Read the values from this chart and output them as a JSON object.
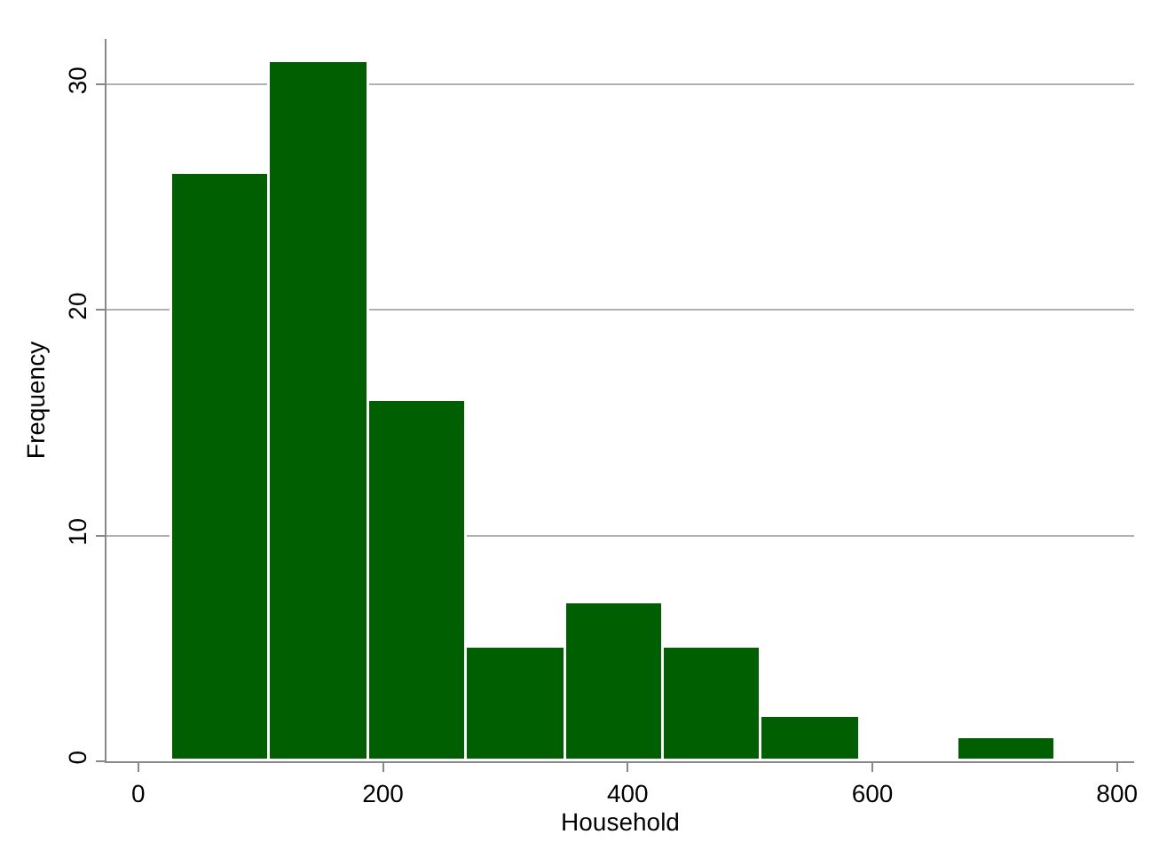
{
  "chart_data": {
    "type": "histogram",
    "xlabel": "Household",
    "ylabel": "Frequency",
    "bins": [
      28,
      108,
      189,
      269,
      350,
      430,
      510,
      590,
      670,
      750
    ],
    "values": [
      26,
      31,
      16,
      5,
      7,
      5,
      2,
      0,
      1
    ],
    "color": "#005f00",
    "xlim": [
      -26,
      814
    ],
    "xticks": [
      0,
      200,
      400,
      600,
      800
    ],
    "ylim": [
      0,
      32
    ],
    "yticks": [
      0,
      10,
      20,
      30
    ],
    "grid": "y"
  }
}
